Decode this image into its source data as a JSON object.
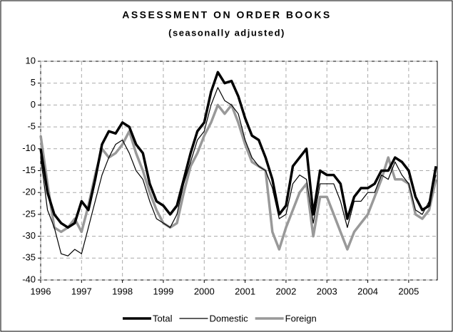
{
  "chart_data": {
    "type": "line",
    "title": "ASSESSMENT ON ORDER BOOKS",
    "subtitle": "(seasonally adjusted)",
    "x": [
      1996,
      1996.167,
      1996.333,
      1996.5,
      1996.667,
      1996.833,
      1997,
      1997.167,
      1997.333,
      1997.5,
      1997.667,
      1997.833,
      1998,
      1998.167,
      1998.333,
      1998.5,
      1998.667,
      1998.833,
      1999,
      1999.167,
      1999.333,
      1999.5,
      1999.667,
      1999.833,
      2000,
      2000.167,
      2000.333,
      2000.5,
      2000.667,
      2000.833,
      2001,
      2001.167,
      2001.333,
      2001.5,
      2001.667,
      2001.833,
      2002,
      2002.167,
      2002.333,
      2002.5,
      2002.667,
      2002.833,
      2003,
      2003.167,
      2003.333,
      2003.5,
      2003.667,
      2003.833,
      2004,
      2004.167,
      2004.333,
      2004.5,
      2004.667,
      2004.833,
      2005,
      2005.167,
      2005.333,
      2005.5,
      2005.667
    ],
    "series": [
      {
        "name": "Total",
        "color": "#000000",
        "width": 3.5,
        "values": [
          -10,
          -20,
          -25,
          -27,
          -28,
          -27,
          -22,
          -24,
          -17,
          -9,
          -6,
          -6.5,
          -4,
          -5,
          -9,
          -11,
          -18,
          -22,
          -23,
          -25,
          -23,
          -17,
          -11,
          -6,
          -4,
          3,
          7.5,
          5,
          5.5,
          2,
          -3,
          -7,
          -8,
          -12,
          -17,
          -25,
          -23,
          -14,
          -12,
          -10,
          -25,
          -15,
          -16,
          -16,
          -18,
          -26,
          -21,
          -19,
          -19,
          -18,
          -15,
          -15,
          -12,
          -13,
          -15,
          -21,
          -24,
          -23,
          -14
        ]
      },
      {
        "name": "Domestic",
        "color": "#000000",
        "width": 1.2,
        "values": [
          -12,
          -24,
          -28,
          -34,
          -34.5,
          -33,
          -34,
          -28,
          -22,
          -16,
          -12,
          -9,
          -8,
          -11,
          -15,
          -17,
          -22,
          -26,
          -27,
          -28,
          -25,
          -18,
          -13,
          -8,
          -6,
          0,
          4,
          1,
          0,
          -2,
          -8,
          -12,
          -14,
          -15,
          -19,
          -26,
          -25,
          -18,
          -16,
          -17,
          -27,
          -18,
          -18,
          -18,
          -22,
          -28,
          -22,
          -22,
          -20,
          -20,
          -16,
          -17,
          -13,
          -16,
          -18,
          -24,
          -25,
          -22,
          -16
        ]
      },
      {
        "name": "Foreign",
        "color": "#999999",
        "width": 3.5,
        "values": [
          -7,
          -18,
          -28,
          -29,
          -28,
          -26,
          -29,
          -23,
          -16,
          -10,
          -12,
          -11,
          -9,
          -6,
          -11,
          -15,
          -20,
          -24,
          -27,
          -28,
          -27,
          -20,
          -14,
          -11,
          -7,
          -4,
          0,
          -2,
          0,
          -4,
          -9,
          -13,
          -14,
          -15,
          -29,
          -33,
          -28,
          -24,
          -20,
          -18,
          -30,
          -21,
          -21,
          -25,
          -29,
          -33,
          -29,
          -27,
          -25,
          -21,
          -17,
          -12,
          -17,
          -17,
          -18,
          -25,
          -26,
          -24,
          -17
        ]
      }
    ],
    "xlim": [
      1996,
      2005.7
    ],
    "xticks": [
      1996,
      1997,
      1998,
      1999,
      2000,
      2001,
      2002,
      2003,
      2004,
      2005
    ],
    "ylim": [
      -40,
      10
    ],
    "yticks": [
      -40,
      -35,
      -30,
      -25,
      -20,
      -15,
      -10,
      -5,
      0,
      5,
      10
    ],
    "grid": true,
    "legend": "bottom"
  }
}
